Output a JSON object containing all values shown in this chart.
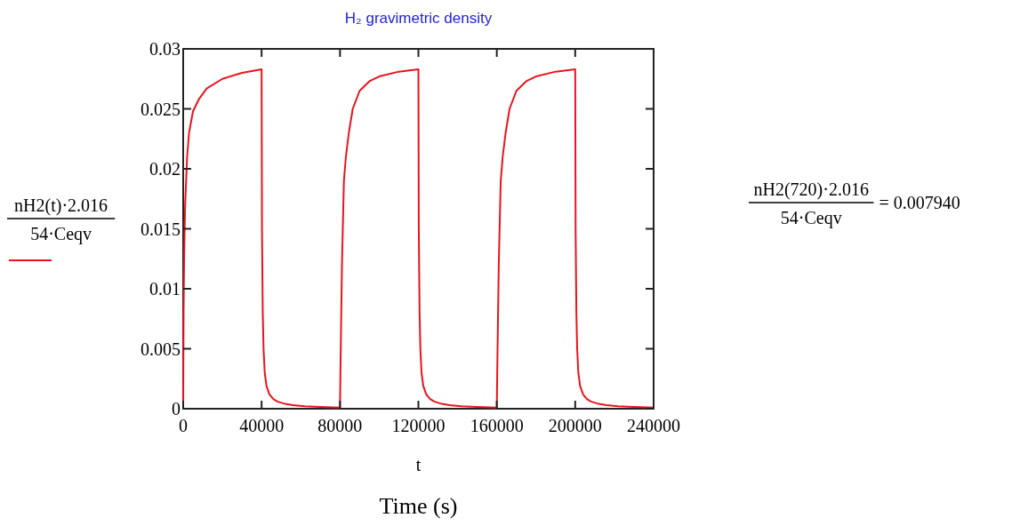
{
  "chart_data": {
    "type": "line",
    "title": "H₂ gravimetric density",
    "xlabel": "t",
    "ylabel": "nH2(t)·2.016\n54·Ceqv",
    "annotations": [
      "Time (s)",
      "nH2(720)·2.016\n54·Ceqv",
      "= 0.007940"
    ],
    "xlim": [
      0,
      240000
    ],
    "xticks": [
      0,
      40000,
      80000,
      120000,
      160000,
      200000,
      240000
    ],
    "ylim": [
      0,
      0.03
    ],
    "yticks": [
      0,
      0.005,
      0.01,
      0.015,
      0.02,
      0.025,
      0.03
    ],
    "grid": false,
    "legend": false,
    "marker": "none",
    "line_style": "solid",
    "series": [
      {
        "color": "#e8141c",
        "x": [
          0,
          200,
          500,
          1000,
          2000,
          3000,
          5000,
          8000,
          12000,
          20000,
          30000,
          40000,
          40200,
          40600,
          41000,
          41600,
          42500,
          44000,
          46000,
          48000,
          52000,
          56000,
          62000,
          70000,
          79800,
          80000,
          80300,
          81000,
          82000,
          83000,
          84500,
          86500,
          90000,
          95000,
          100000,
          110000,
          120000,
          120200,
          120600,
          121000,
          121600,
          122500,
          124000,
          126000,
          128000,
          132000,
          136000,
          142000,
          150000,
          159800,
          160000,
          160300,
          161000,
          162000,
          163000,
          164500,
          166500,
          170000,
          175000,
          180000,
          190000,
          200000,
          200200,
          200600,
          201000,
          201600,
          202500,
          204000,
          206000,
          208000,
          212000,
          216000,
          222000,
          230000,
          240000
        ],
        "values": [
          0,
          0.008,
          0.013,
          0.017,
          0.021,
          0.023,
          0.0248,
          0.0258,
          0.0267,
          0.0275,
          0.028,
          0.0283,
          0.015,
          0.008,
          0.005,
          0.003,
          0.0019,
          0.0012,
          0.0008,
          0.0006,
          0.0004,
          0.0003,
          0.0002,
          0.00015,
          0.0001,
          0.0001,
          0.004,
          0.012,
          0.019,
          0.021,
          0.023,
          0.025,
          0.0265,
          0.0273,
          0.0277,
          0.0281,
          0.0283,
          0.015,
          0.008,
          0.005,
          0.003,
          0.0019,
          0.0012,
          0.0008,
          0.0006,
          0.0004,
          0.0003,
          0.0002,
          0.00015,
          0.0001,
          0.0001,
          0.004,
          0.012,
          0.019,
          0.021,
          0.023,
          0.025,
          0.0265,
          0.0273,
          0.0277,
          0.0281,
          0.0283,
          0.015,
          0.008,
          0.005,
          0.003,
          0.0019,
          0.0012,
          0.0008,
          0.0006,
          0.0004,
          0.0003,
          0.0002,
          0.00015,
          0.0001
        ]
      }
    ]
  }
}
